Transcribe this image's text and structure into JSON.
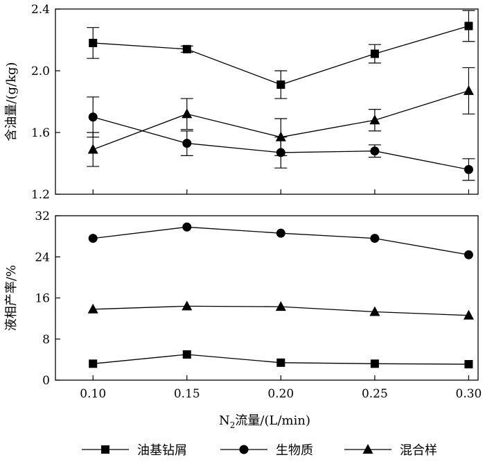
{
  "legend": {
    "items": [
      {
        "label": "油基钻屑",
        "marker": "square"
      },
      {
        "label": "生物质",
        "marker": "circle"
      },
      {
        "label": "混合样",
        "marker": "triangle"
      }
    ]
  },
  "chart_data": [
    {
      "type": "line",
      "ylabel": "含油量/(g/kg)",
      "xlabel": "N2流量/(L/min)",
      "ylim": [
        1.2,
        2.4
      ],
      "yticks": [
        1.2,
        1.6,
        2.0,
        2.4
      ],
      "ytick_labels": [
        "1.2",
        "1.6",
        "2.0",
        "2.4"
      ],
      "x": [
        0.1,
        0.15,
        0.2,
        0.25,
        0.3
      ],
      "xlim": [
        0.08,
        0.305
      ],
      "series": [
        {
          "name": "油基钻屑",
          "marker": "square",
          "values": [
            2.18,
            2.14,
            1.91,
            2.11,
            2.29
          ],
          "errors": [
            0.1,
            0.02,
            0.09,
            0.06,
            0.1
          ]
        },
        {
          "name": "生物质",
          "marker": "circle",
          "values": [
            1.7,
            1.53,
            1.47,
            1.48,
            1.36
          ],
          "errors": [
            0.13,
            0.08,
            0.1,
            0.04,
            0.07
          ]
        },
        {
          "name": "混合样",
          "marker": "triangle",
          "values": [
            1.49,
            1.72,
            1.57,
            1.68,
            1.87
          ],
          "errors": [
            0.11,
            0.1,
            0.12,
            0.07,
            0.15
          ]
        }
      ]
    },
    {
      "type": "line",
      "ylabel": "液相产率/%",
      "xlabel": "N2流量/(L/min)",
      "ylim": [
        0,
        32
      ],
      "yticks": [
        0,
        8,
        16,
        24,
        32
      ],
      "ytick_labels": [
        "0",
        "8",
        "16",
        "24",
        "32"
      ],
      "x": [
        0.1,
        0.15,
        0.2,
        0.25,
        0.3
      ],
      "xlim": [
        0.08,
        0.305
      ],
      "xtick_labels": [
        "0.10",
        "0.15",
        "0.20",
        "0.25",
        "0.30"
      ],
      "series": [
        {
          "name": "油基钻屑",
          "marker": "square",
          "values": [
            3.2,
            5.0,
            3.4,
            3.2,
            3.1
          ]
        },
        {
          "name": "生物质",
          "marker": "circle",
          "values": [
            27.6,
            29.8,
            28.6,
            27.6,
            24.4
          ]
        },
        {
          "name": "混合样",
          "marker": "triangle",
          "values": [
            13.8,
            14.4,
            14.3,
            13.3,
            12.6
          ]
        }
      ]
    }
  ],
  "xaxis": {
    "label_prefix": "N",
    "label_subscript": "2",
    "label_suffix": "流量/(L/min)"
  }
}
